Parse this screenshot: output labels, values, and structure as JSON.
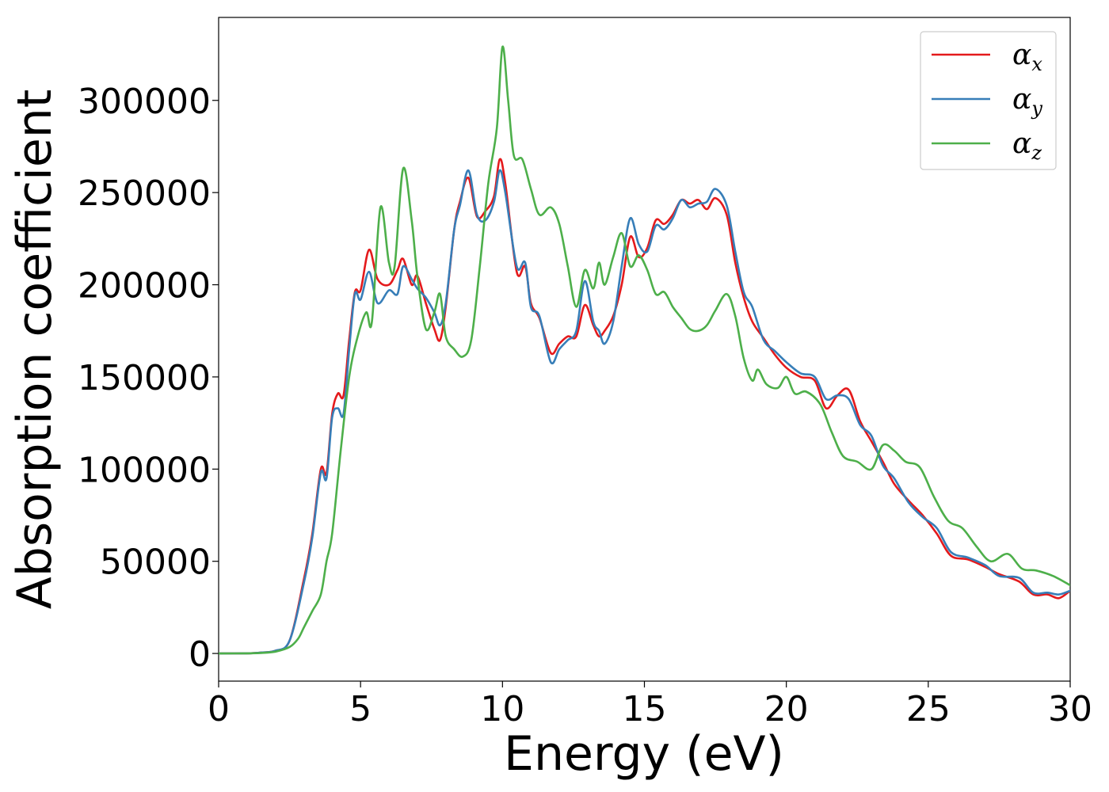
{
  "chart_data": {
    "type": "line",
    "title": "",
    "xlabel": "Energy (eV)",
    "ylabel": "Absorption coefficient",
    "xlim": [
      0,
      30
    ],
    "ylim": [
      -15000,
      345000
    ],
    "xticks": [
      0,
      5,
      10,
      15,
      20,
      25,
      30
    ],
    "yticks": [
      0,
      50000,
      100000,
      150000,
      200000,
      250000,
      300000
    ],
    "grid": false,
    "legend_position": "top-right",
    "series": [
      {
        "name": "α_x",
        "symbol": "α",
        "subscript": "x",
        "color": "#e41a1c",
        "points": [
          [
            0,
            0
          ],
          [
            1,
            100
          ],
          [
            1.5,
            500
          ],
          [
            2,
            1500
          ],
          [
            2.5,
            7000
          ],
          [
            3,
            40000
          ],
          [
            3.3,
            65000
          ],
          [
            3.6,
            100000
          ],
          [
            3.8,
            98000
          ],
          [
            4,
            130000
          ],
          [
            4.2,
            141000
          ],
          [
            4.4,
            140000
          ],
          [
            4.6,
            170000
          ],
          [
            4.8,
            196000
          ],
          [
            5,
            197000
          ],
          [
            5.3,
            219000
          ],
          [
            5.6,
            203000
          ],
          [
            6,
            200000
          ],
          [
            6.3,
            208000
          ],
          [
            6.5,
            214000
          ],
          [
            6.8,
            200000
          ],
          [
            7,
            205000
          ],
          [
            7.3,
            190000
          ],
          [
            7.6,
            176000
          ],
          [
            7.8,
            170000
          ],
          [
            8,
            188000
          ],
          [
            8.3,
            230000
          ],
          [
            8.5,
            245000
          ],
          [
            8.8,
            258000
          ],
          [
            9.1,
            237000
          ],
          [
            9.4,
            240000
          ],
          [
            9.7,
            248000
          ],
          [
            9.9,
            268000
          ],
          [
            10.1,
            255000
          ],
          [
            10.5,
            207000
          ],
          [
            10.8,
            210000
          ],
          [
            11,
            190000
          ],
          [
            11.3,
            182000
          ],
          [
            11.7,
            163000
          ],
          [
            12,
            168000
          ],
          [
            12.3,
            172000
          ],
          [
            12.6,
            172000
          ],
          [
            12.9,
            189000
          ],
          [
            13.2,
            178000
          ],
          [
            13.4,
            172000
          ],
          [
            13.6,
            175000
          ],
          [
            13.9,
            183000
          ],
          [
            14.2,
            200000
          ],
          [
            14.5,
            226000
          ],
          [
            14.8,
            215000
          ],
          [
            15.1,
            220000
          ],
          [
            15.4,
            235000
          ],
          [
            15.7,
            233000
          ],
          [
            16,
            238000
          ],
          [
            16.3,
            246000
          ],
          [
            16.6,
            244000
          ],
          [
            16.9,
            246000
          ],
          [
            17.2,
            241000
          ],
          [
            17.5,
            247000
          ],
          [
            17.9,
            238000
          ],
          [
            18.2,
            212000
          ],
          [
            18.5,
            193000
          ],
          [
            18.8,
            180000
          ],
          [
            19.2,
            171000
          ],
          [
            19.6,
            162000
          ],
          [
            20,
            155000
          ],
          [
            20.5,
            150000
          ],
          [
            21,
            148000
          ],
          [
            21.4,
            133000
          ],
          [
            21.8,
            140000
          ],
          [
            22.2,
            143000
          ],
          [
            22.6,
            126000
          ],
          [
            23,
            115000
          ],
          [
            23.4,
            104000
          ],
          [
            23.8,
            92000
          ],
          [
            24.3,
            83000
          ],
          [
            24.8,
            75000
          ],
          [
            25.3,
            65000
          ],
          [
            25.8,
            53000
          ],
          [
            26.4,
            51000
          ],
          [
            27,
            47000
          ],
          [
            27.5,
            43000
          ],
          [
            28.2,
            39000
          ],
          [
            28.7,
            32000
          ],
          [
            29.2,
            32000
          ],
          [
            29.6,
            30000
          ],
          [
            30,
            34000
          ]
        ]
      },
      {
        "name": "α_y",
        "symbol": "α",
        "subscript": "y",
        "color": "#377eb8",
        "points": [
          [
            0,
            0
          ],
          [
            1,
            100
          ],
          [
            1.5,
            500
          ],
          [
            2,
            1500
          ],
          [
            2.5,
            7000
          ],
          [
            3,
            38000
          ],
          [
            3.3,
            63000
          ],
          [
            3.6,
            98000
          ],
          [
            3.8,
            95000
          ],
          [
            4,
            128000
          ],
          [
            4.2,
            133000
          ],
          [
            4.4,
            130000
          ],
          [
            4.6,
            165000
          ],
          [
            4.8,
            195000
          ],
          [
            5,
            192000
          ],
          [
            5.3,
            207000
          ],
          [
            5.6,
            190000
          ],
          [
            6,
            197000
          ],
          [
            6.3,
            195000
          ],
          [
            6.5,
            210000
          ],
          [
            6.8,
            203000
          ],
          [
            7,
            198000
          ],
          [
            7.3,
            193000
          ],
          [
            7.6,
            185000
          ],
          [
            7.8,
            178000
          ],
          [
            8,
            190000
          ],
          [
            8.3,
            230000
          ],
          [
            8.5,
            243000
          ],
          [
            8.8,
            262000
          ],
          [
            9.1,
            238000
          ],
          [
            9.4,
            235000
          ],
          [
            9.7,
            245000
          ],
          [
            9.9,
            262000
          ],
          [
            10.1,
            250000
          ],
          [
            10.5,
            210000
          ],
          [
            10.8,
            212000
          ],
          [
            11,
            188000
          ],
          [
            11.3,
            183000
          ],
          [
            11.7,
            158000
          ],
          [
            12,
            165000
          ],
          [
            12.3,
            170000
          ],
          [
            12.6,
            175000
          ],
          [
            12.9,
            202000
          ],
          [
            13.2,
            180000
          ],
          [
            13.4,
            175000
          ],
          [
            13.6,
            168000
          ],
          [
            13.9,
            180000
          ],
          [
            14.2,
            210000
          ],
          [
            14.5,
            236000
          ],
          [
            14.8,
            222000
          ],
          [
            15.1,
            218000
          ],
          [
            15.4,
            232000
          ],
          [
            15.7,
            230000
          ],
          [
            16,
            236000
          ],
          [
            16.3,
            246000
          ],
          [
            16.6,
            242000
          ],
          [
            16.9,
            244000
          ],
          [
            17.2,
            245000
          ],
          [
            17.5,
            252000
          ],
          [
            17.9,
            243000
          ],
          [
            18.2,
            218000
          ],
          [
            18.5,
            196000
          ],
          [
            18.8,
            188000
          ],
          [
            19.2,
            170000
          ],
          [
            19.6,
            164000
          ],
          [
            20,
            158000
          ],
          [
            20.5,
            152000
          ],
          [
            21,
            150000
          ],
          [
            21.4,
            138000
          ],
          [
            21.8,
            140000
          ],
          [
            22.2,
            138000
          ],
          [
            22.6,
            124000
          ],
          [
            23,
            118000
          ],
          [
            23.4,
            102000
          ],
          [
            23.8,
            95000
          ],
          [
            24.3,
            82000
          ],
          [
            24.8,
            74000
          ],
          [
            25.3,
            68000
          ],
          [
            25.8,
            55000
          ],
          [
            26.4,
            52000
          ],
          [
            27,
            48000
          ],
          [
            27.5,
            42000
          ],
          [
            28.2,
            41000
          ],
          [
            28.7,
            33000
          ],
          [
            29.2,
            33000
          ],
          [
            29.6,
            32000
          ],
          [
            30,
            34000
          ]
        ]
      },
      {
        "name": "α_z",
        "symbol": "α",
        "subscript": "z",
        "color": "#4daf4a",
        "points": [
          [
            0,
            0
          ],
          [
            1,
            100
          ],
          [
            1.5,
            300
          ],
          [
            2,
            1000
          ],
          [
            2.5,
            3500
          ],
          [
            2.8,
            8000
          ],
          [
            3,
            14000
          ],
          [
            3.3,
            23000
          ],
          [
            3.6,
            32000
          ],
          [
            3.8,
            50000
          ],
          [
            4,
            65000
          ],
          [
            4.3,
            110000
          ],
          [
            4.6,
            150000
          ],
          [
            4.9,
            172000
          ],
          [
            5.2,
            185000
          ],
          [
            5.4,
            180000
          ],
          [
            5.7,
            242000
          ],
          [
            6,
            212000
          ],
          [
            6.2,
            210000
          ],
          [
            6.5,
            263000
          ],
          [
            6.8,
            235000
          ],
          [
            7,
            205000
          ],
          [
            7.3,
            176000
          ],
          [
            7.6,
            185000
          ],
          [
            7.8,
            195000
          ],
          [
            8,
            172000
          ],
          [
            8.3,
            165000
          ],
          [
            8.6,
            161000
          ],
          [
            8.9,
            170000
          ],
          [
            9.2,
            210000
          ],
          [
            9.5,
            255000
          ],
          [
            9.8,
            285000
          ],
          [
            10,
            329000
          ],
          [
            10.2,
            300000
          ],
          [
            10.4,
            270000
          ],
          [
            10.7,
            268000
          ],
          [
            11,
            252000
          ],
          [
            11.3,
            238000
          ],
          [
            11.7,
            242000
          ],
          [
            12,
            233000
          ],
          [
            12.3,
            210000
          ],
          [
            12.6,
            188000
          ],
          [
            12.9,
            208000
          ],
          [
            13.2,
            198000
          ],
          [
            13.4,
            212000
          ],
          [
            13.6,
            200000
          ],
          [
            13.9,
            215000
          ],
          [
            14.2,
            228000
          ],
          [
            14.5,
            210000
          ],
          [
            14.8,
            216000
          ],
          [
            15.1,
            208000
          ],
          [
            15.4,
            195000
          ],
          [
            15.7,
            196000
          ],
          [
            16,
            188000
          ],
          [
            16.3,
            182000
          ],
          [
            16.6,
            176000
          ],
          [
            16.9,
            175000
          ],
          [
            17.2,
            178000
          ],
          [
            17.5,
            186000
          ],
          [
            17.9,
            195000
          ],
          [
            18.2,
            183000
          ],
          [
            18.5,
            160000
          ],
          [
            18.8,
            148000
          ],
          [
            19,
            154000
          ],
          [
            19.3,
            146000
          ],
          [
            19.7,
            144000
          ],
          [
            20,
            150000
          ],
          [
            20.3,
            141000
          ],
          [
            20.7,
            142000
          ],
          [
            21.2,
            135000
          ],
          [
            21.6,
            120000
          ],
          [
            22,
            107000
          ],
          [
            22.5,
            104000
          ],
          [
            23,
            100000
          ],
          [
            23.4,
            113000
          ],
          [
            23.8,
            110000
          ],
          [
            24.2,
            104000
          ],
          [
            24.7,
            101000
          ],
          [
            25.2,
            85000
          ],
          [
            25.7,
            72000
          ],
          [
            26.2,
            68000
          ],
          [
            26.7,
            58000
          ],
          [
            27.2,
            50000
          ],
          [
            27.8,
            54000
          ],
          [
            28.3,
            46000
          ],
          [
            28.8,
            45000
          ],
          [
            29.4,
            42000
          ],
          [
            30,
            37000
          ]
        ]
      }
    ]
  }
}
